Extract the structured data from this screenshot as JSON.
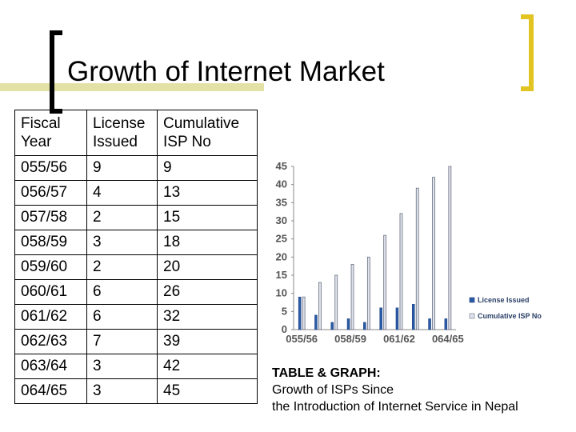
{
  "title": "Growth of Internet Market",
  "table": {
    "headers": [
      {
        "line1": "Fiscal",
        "line2": "Year"
      },
      {
        "line1": "License",
        "line2": "Issued"
      },
      {
        "line1": "Cumulative",
        "line2": "ISP No"
      }
    ],
    "rows": [
      [
        "055/56",
        "9",
        "9"
      ],
      [
        "056/57",
        "4",
        "13"
      ],
      [
        "057/58",
        "2",
        "15"
      ],
      [
        "058/59",
        "3",
        "18"
      ],
      [
        "059/60",
        "2",
        "20"
      ],
      [
        "060/61",
        "6",
        "26"
      ],
      [
        "061/62",
        "6",
        "32"
      ],
      [
        "062/63",
        "7",
        "39"
      ],
      [
        "063/64",
        "3",
        "42"
      ],
      [
        "064/65",
        "3",
        "45"
      ]
    ]
  },
  "caption": {
    "bold": "TABLE & GRAPH:",
    "line2": "Growth of ISPs Since",
    "line3": "the Introduction of Internet Service in Nepal"
  },
  "chart_data": {
    "type": "bar",
    "categories": [
      "055/56",
      "056/57",
      "057/58",
      "058/59",
      "059/60",
      "060/61",
      "061/62",
      "062/63",
      "063/64",
      "064/65"
    ],
    "x_tick_labels": [
      "055/56",
      "058/59",
      "061/62",
      "064/65"
    ],
    "series": [
      {
        "name": "License Issued",
        "values": [
          9,
          4,
          2,
          3,
          2,
          6,
          6,
          7,
          3,
          3
        ],
        "color": "#2a5aa8"
      },
      {
        "name": "Cumulative ISP No",
        "values": [
          9,
          13,
          15,
          18,
          20,
          26,
          32,
          39,
          42,
          45
        ],
        "color": "#dfe3ec"
      }
    ],
    "ylim": [
      0,
      45
    ],
    "yticks": [
      0,
      5,
      10,
      15,
      20,
      25,
      30,
      35,
      40,
      45
    ],
    "grid": false,
    "legend": "right"
  }
}
